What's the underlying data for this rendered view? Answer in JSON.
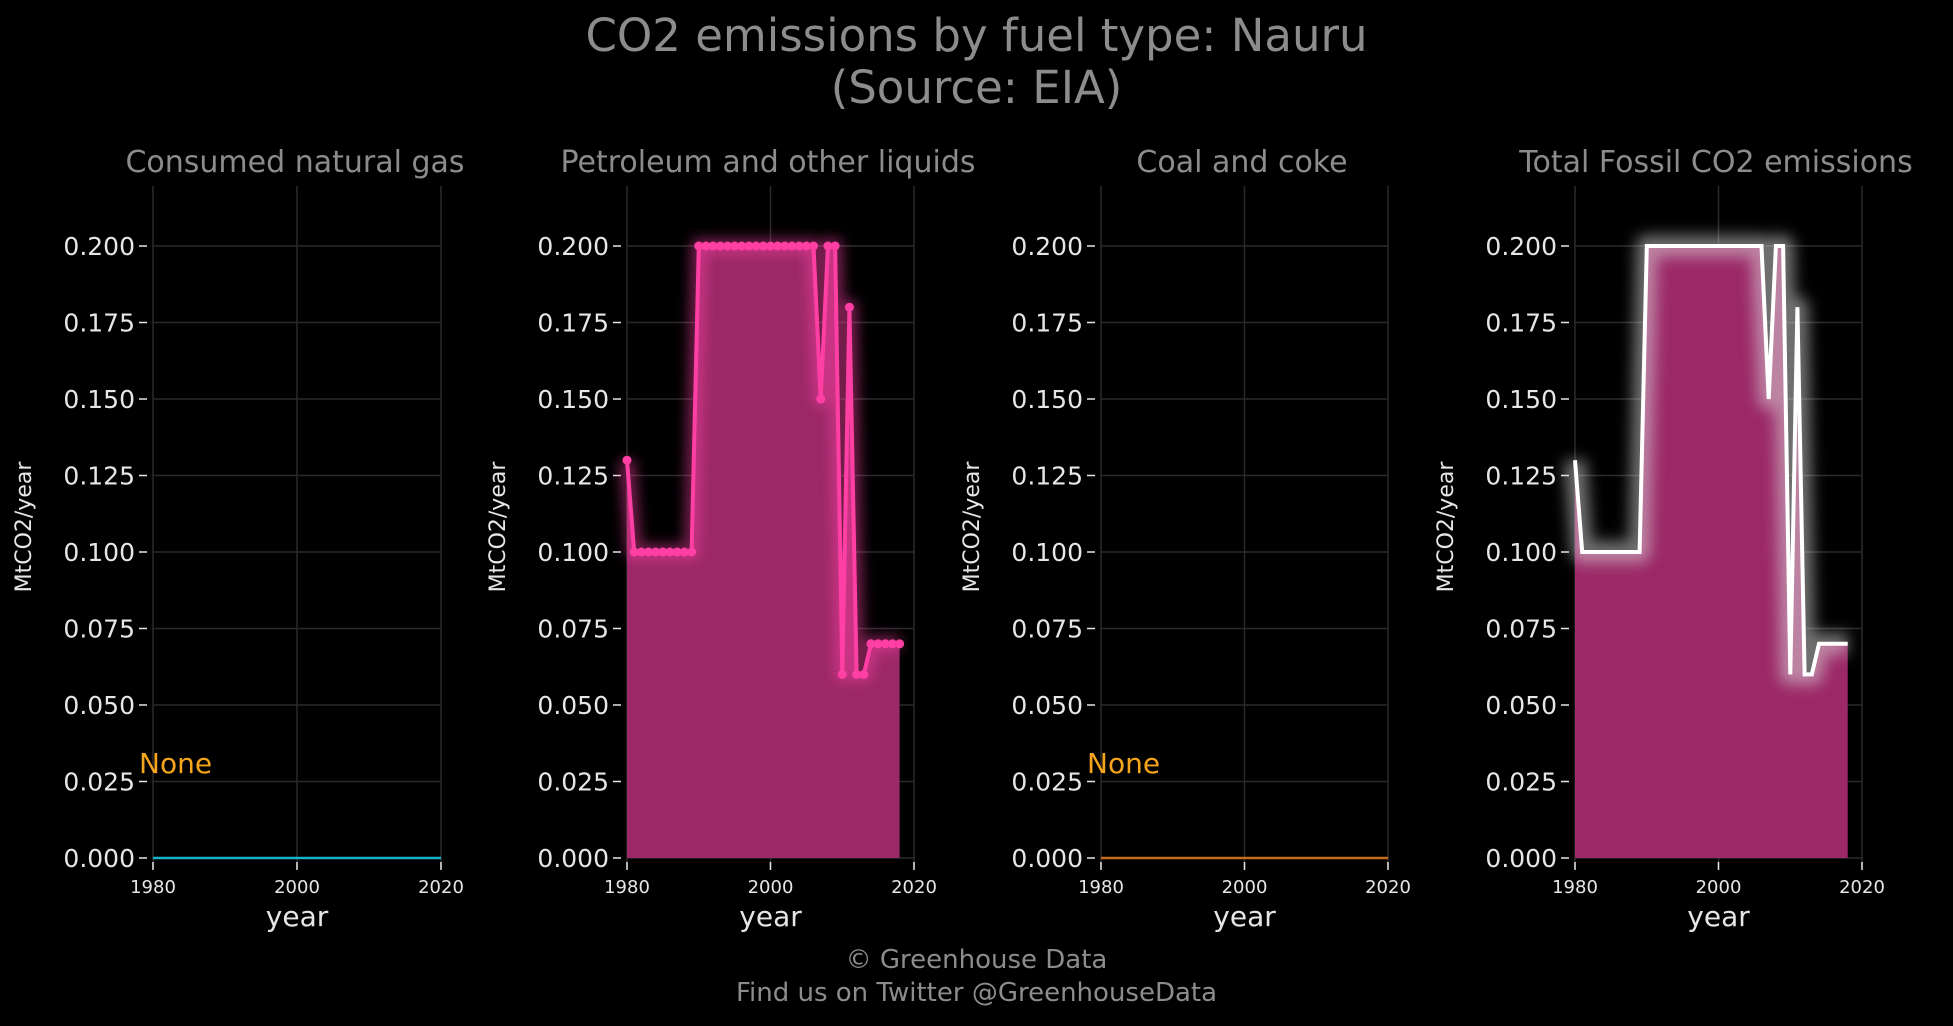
{
  "title": {
    "line1": "CO2 emissions by fuel type: Nauru",
    "line2": "(Source: EIA)"
  },
  "footer": {
    "line1": "© Greenhouse Data",
    "line2": "Find us on Twitter @GreenhouseData"
  },
  "colors": {
    "background": "#000000",
    "grid": "#2a2a2a",
    "text": "#e6e6e6",
    "title": "#8c8c8c",
    "none_label": "#f5a51c",
    "gas_line": "#16b4c8",
    "petroleum_line": "#ff3fa4",
    "area_fill": "#a0296a",
    "coal_line": "#c86a1e",
    "total_line": "#ffffff"
  },
  "chart_data": [
    {
      "type": "line",
      "title": "Consumed natural gas",
      "xlabel": "year",
      "ylabel": "MtCO2/year",
      "xlim": [
        1980,
        2020
      ],
      "ylim": [
        0,
        0.2
      ],
      "xticks": [
        "1980",
        "2000",
        "2020"
      ],
      "yticks": [
        "0.000",
        "0.025",
        "0.050",
        "0.075",
        "0.100",
        "0.125",
        "0.150",
        "0.175",
        "0.200"
      ],
      "grid": true,
      "annotation": "None",
      "series": [
        {
          "color": "#16b4c8",
          "x": [
            1980,
            2020
          ],
          "y": [
            0,
            0
          ]
        }
      ]
    },
    {
      "type": "area",
      "title": "Petroleum and other liquids",
      "xlabel": "year",
      "ylabel": "MtCO2/year",
      "xlim": [
        1980,
        2020
      ],
      "ylim": [
        0,
        0.2
      ],
      "xticks": [
        "1980",
        "2000",
        "2020"
      ],
      "yticks": [
        "0.000",
        "0.025",
        "0.050",
        "0.075",
        "0.100",
        "0.125",
        "0.150",
        "0.175",
        "0.200"
      ],
      "grid": true,
      "series": [
        {
          "color": "#ff3fa4",
          "markers": true,
          "x": [
            1980,
            1981,
            1982,
            1983,
            1984,
            1985,
            1986,
            1987,
            1988,
            1989,
            1990,
            1991,
            1992,
            1993,
            1994,
            1995,
            1996,
            1997,
            1998,
            1999,
            2000,
            2001,
            2002,
            2003,
            2004,
            2005,
            2006,
            2007,
            2008,
            2009,
            2010,
            2011,
            2012,
            2013,
            2014,
            2015,
            2016,
            2017,
            2018
          ],
          "y": [
            0.13,
            0.1,
            0.1,
            0.1,
            0.1,
            0.1,
            0.1,
            0.1,
            0.1,
            0.1,
            0.2,
            0.2,
            0.2,
            0.2,
            0.2,
            0.2,
            0.2,
            0.2,
            0.2,
            0.2,
            0.2,
            0.2,
            0.2,
            0.2,
            0.2,
            0.2,
            0.2,
            0.15,
            0.2,
            0.2,
            0.06,
            0.18,
            0.06,
            0.06,
            0.07,
            0.07,
            0.07,
            0.07,
            0.07
          ]
        }
      ]
    },
    {
      "type": "line",
      "title": "Coal and coke",
      "xlabel": "year",
      "ylabel": "MtCO2/year",
      "xlim": [
        1980,
        2020
      ],
      "ylim": [
        0,
        0.2
      ],
      "xticks": [
        "1980",
        "2000",
        "2020"
      ],
      "yticks": [
        "0.000",
        "0.025",
        "0.050",
        "0.075",
        "0.100",
        "0.125",
        "0.150",
        "0.175",
        "0.200"
      ],
      "grid": true,
      "annotation": "None",
      "series": [
        {
          "color": "#c86a1e",
          "x": [
            1980,
            2020
          ],
          "y": [
            0,
            0
          ]
        }
      ]
    },
    {
      "type": "area",
      "title": "Total Fossil CO2 emissions",
      "xlabel": "year",
      "ylabel": "MtCO2/year",
      "xlim": [
        1980,
        2020
      ],
      "ylim": [
        0,
        0.2
      ],
      "xticks": [
        "1980",
        "2000",
        "2020"
      ],
      "yticks": [
        "0.000",
        "0.025",
        "0.050",
        "0.075",
        "0.100",
        "0.125",
        "0.150",
        "0.175",
        "0.200"
      ],
      "grid": true,
      "series": [
        {
          "color": "#ffffff",
          "markers": false,
          "x": [
            1980,
            1981,
            1982,
            1983,
            1984,
            1985,
            1986,
            1987,
            1988,
            1989,
            1990,
            1991,
            1992,
            1993,
            1994,
            1995,
            1996,
            1997,
            1998,
            1999,
            2000,
            2001,
            2002,
            2003,
            2004,
            2005,
            2006,
            2007,
            2008,
            2009,
            2010,
            2011,
            2012,
            2013,
            2014,
            2015,
            2016,
            2017,
            2018
          ],
          "y": [
            0.13,
            0.1,
            0.1,
            0.1,
            0.1,
            0.1,
            0.1,
            0.1,
            0.1,
            0.1,
            0.2,
            0.2,
            0.2,
            0.2,
            0.2,
            0.2,
            0.2,
            0.2,
            0.2,
            0.2,
            0.2,
            0.2,
            0.2,
            0.2,
            0.2,
            0.2,
            0.2,
            0.15,
            0.2,
            0.2,
            0.06,
            0.18,
            0.06,
            0.06,
            0.07,
            0.07,
            0.07,
            0.07,
            0.07
          ]
        }
      ]
    }
  ]
}
